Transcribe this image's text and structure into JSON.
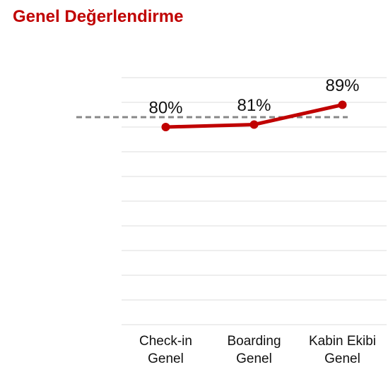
{
  "chart_data": {
    "type": "line",
    "title": "Genel Değerlendirme",
    "categories": [
      "Check-in Genel",
      "Boarding Genel",
      "Kabin Ekibi Genel"
    ],
    "values": [
      80,
      81,
      89
    ],
    "value_labels": [
      "80%",
      "81%",
      "89%"
    ],
    "color": "#c00000",
    "reference_line": 84,
    "reference_color": "#888888",
    "ylim": [
      0,
      100
    ],
    "yticks": [
      0,
      10,
      20,
      30,
      40,
      50,
      60,
      70,
      80,
      90,
      100
    ],
    "grid": true
  }
}
